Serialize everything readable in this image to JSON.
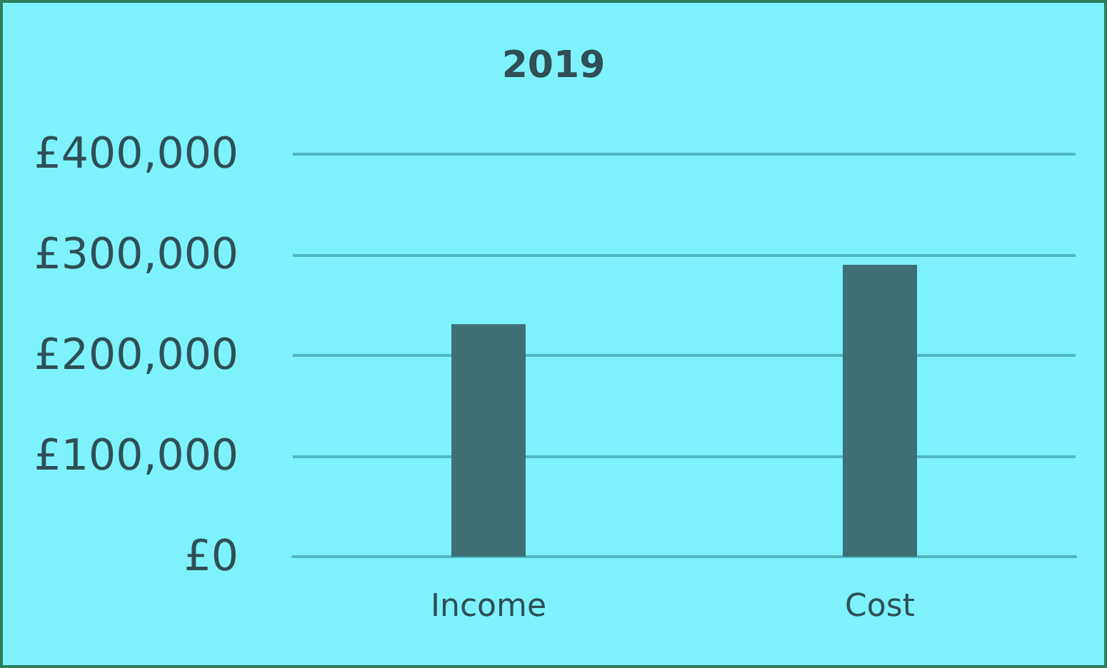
{
  "chart_data": {
    "type": "bar",
    "title": "2019",
    "categories": [
      "Income",
      "Cost"
    ],
    "values": [
      231000,
      290000
    ],
    "color": "#3d6f74",
    "ylim": [
      0,
      400000
    ],
    "yticks": [
      {
        "value": 0,
        "label": "£0"
      },
      {
        "value": 100000,
        "label": "£100,000"
      },
      {
        "value": 200000,
        "label": "£200,000"
      },
      {
        "value": 300000,
        "label": "£300,000"
      },
      {
        "value": 400000,
        "label": "£400,000"
      }
    ],
    "grid": "y"
  }
}
